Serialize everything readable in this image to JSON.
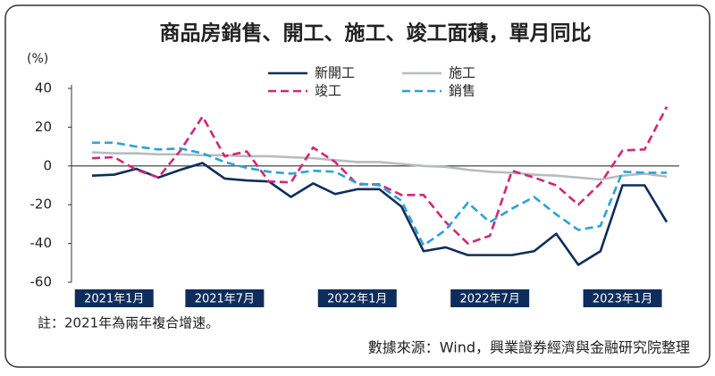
{
  "chart_data": {
    "type": "line",
    "title": "商品房銷售、開工、施工、竣工面積，單月同比",
    "y_label": "(%)",
    "note": "註：2021年為兩年複合增速。",
    "source": "數據來源：Wind，興業證券經濟與金融研究院整理",
    "categories": [
      null,
      "2021年1月",
      null,
      null,
      null,
      null,
      "2021年7月",
      null,
      null,
      null,
      null,
      null,
      "2022年1月",
      null,
      null,
      null,
      null,
      null,
      "2022年7月",
      null,
      null,
      null,
      null,
      null,
      "2023年1月",
      null,
      null
    ],
    "ylim": [
      -60,
      40
    ],
    "yticks": [
      -60,
      -40,
      -20,
      0,
      20,
      40
    ],
    "legend": "top",
    "series": [
      {
        "name": "新開工",
        "color": "#0f2d5c",
        "dash": false,
        "values": [
          -5,
          -4.5,
          -1.5,
          -6,
          -2,
          1.5,
          -6.5,
          -7.5,
          -8,
          -16,
          -9,
          -14.5,
          -12,
          -12,
          -21,
          -44,
          -42,
          -46,
          -46,
          -46,
          -44,
          -35,
          -51,
          -44,
          -10,
          -10,
          -29
        ]
      },
      {
        "name": "施工",
        "color": "#b8bcc0",
        "dash": false,
        "values": [
          7,
          6.5,
          6.5,
          6,
          6,
          5.5,
          5.5,
          5,
          5,
          4.5,
          4,
          3,
          2,
          2,
          1,
          0,
          -0.5,
          -2,
          -3,
          -3.5,
          -4.5,
          -5,
          -6,
          -7,
          -5,
          -4,
          -5.5
        ]
      },
      {
        "name": "竣工",
        "color": "#d6257a",
        "dash": true,
        "values": [
          4,
          4.5,
          -2,
          -6,
          8,
          25.5,
          5,
          7.5,
          -8,
          -8.5,
          9.5,
          2,
          -9.5,
          -9.5,
          -15,
          -15,
          -29,
          -40,
          -36,
          -2.5,
          -6,
          -10,
          -20,
          -9,
          8,
          8.5,
          30.5
        ]
      },
      {
        "name": "銷售",
        "color": "#2aa3d8",
        "dash": true,
        "values": [
          12,
          12,
          10,
          8.5,
          9,
          6.5,
          2,
          -1,
          -3,
          -4,
          -2.5,
          -3,
          -9,
          -10,
          -18,
          -41,
          -33,
          -19,
          -29,
          -22,
          -16,
          -25,
          -33,
          -31,
          -3,
          -3.5,
          -3.5
        ]
      }
    ]
  }
}
